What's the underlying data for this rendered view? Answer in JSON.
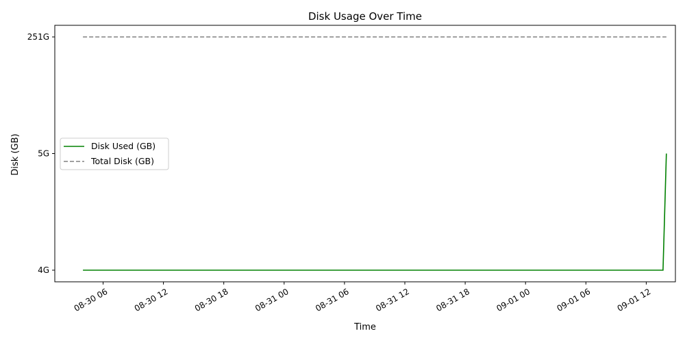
{
  "chart_data": {
    "type": "line",
    "title": "Disk Usage Over Time",
    "xlabel": "Time",
    "ylabel": "Disk (GB)",
    "x_ticks": [
      "08-30 06",
      "08-30 12",
      "08-30 18",
      "08-31 00",
      "08-31 06",
      "08-31 12",
      "08-31 18",
      "09-01 00",
      "09-01 06",
      "09-01 12"
    ],
    "y_categories": [
      "4G",
      "5G",
      "251G"
    ],
    "xlim": [
      "2024-08-30 01:12",
      "2024-09-01 14:54"
    ],
    "series": [
      {
        "name": "Disk Used (GB)",
        "color": "#008000",
        "linestyle": "solid",
        "x": [
          "2024-08-30 04:00",
          "2024-09-01 13:40",
          "2024-09-01 14:00"
        ],
        "y": [
          "4G",
          "4G",
          "5G"
        ]
      },
      {
        "name": "Total Disk (GB)",
        "color": "#808080",
        "linestyle": "dashed",
        "x": [
          "2024-08-30 04:00",
          "2024-09-01 14:00"
        ],
        "y": [
          "251G",
          "251G"
        ]
      }
    ],
    "grid": false,
    "legend_position": "center-left"
  }
}
